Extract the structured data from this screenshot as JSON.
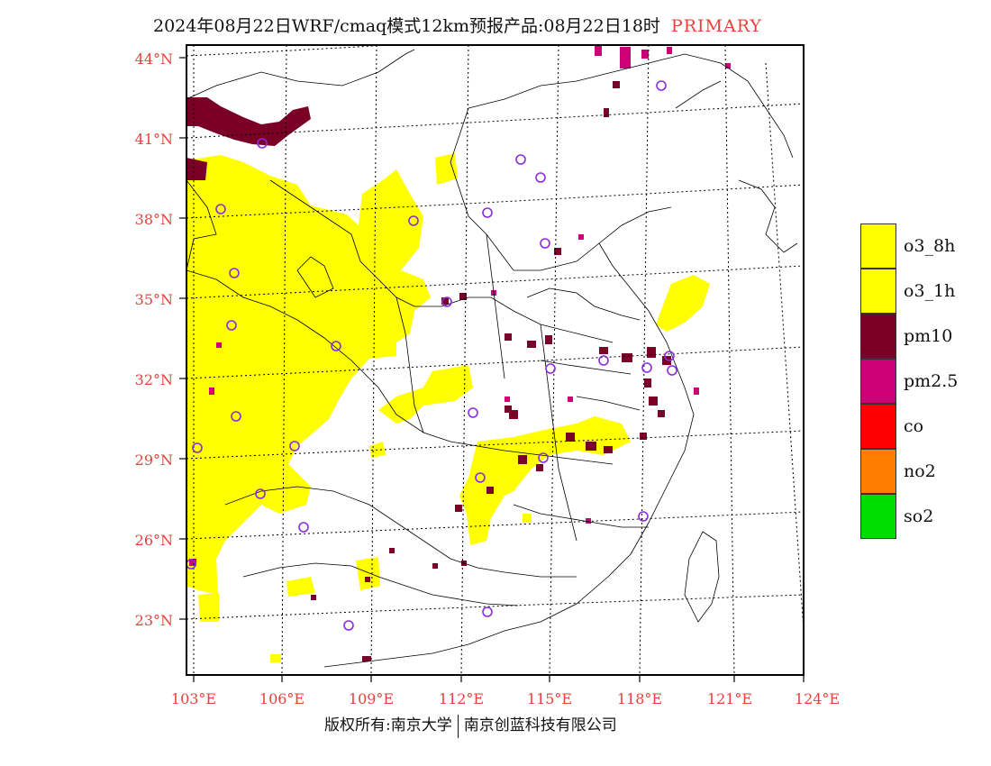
{
  "header": {
    "title": "2024年08月22日WRF/cmaq模式12km预报产品:08月22日18时",
    "tag": "PRIMARY"
  },
  "axes": {
    "lat_labels": [
      "44°N",
      "41°N",
      "38°N",
      "35°N",
      "32°N",
      "29°N",
      "26°N",
      "23°N"
    ],
    "lon_labels": [
      "103°E",
      "106°E",
      "109°E",
      "112°E",
      "115°E",
      "118°E",
      "121°E",
      "124°E"
    ]
  },
  "legend": {
    "items": [
      {
        "label": "o3_8h",
        "color": "#ffff00"
      },
      {
        "label": "o3_1h",
        "color": "#ffff00"
      },
      {
        "label": "pm10",
        "color": "#7a0028"
      },
      {
        "label": "pm2.5",
        "color": "#cc0077"
      },
      {
        "label": "co",
        "color": "#ff0000"
      },
      {
        "label": "no2",
        "color": "#ff7f00"
      },
      {
        "label": "so2",
        "color": "#00dd00"
      }
    ]
  },
  "footer": {
    "left": "版权所有:南京大学",
    "right": "南京创蓝科技有限公司"
  },
  "colors": {
    "axis_label": "#e8403a",
    "o3": "#ffff00",
    "pm10": "#7a0028",
    "pm25": "#cc0077",
    "station": "#8a2be2"
  }
}
